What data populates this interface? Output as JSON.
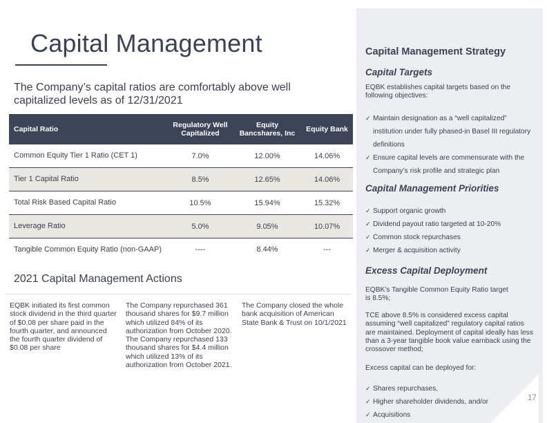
{
  "title": "Capital Management",
  "subtitle": "The Company’s capital ratios are comfortably above well capitalized levels as of 12/31/2021",
  "table": {
    "headers": [
      "Capital Ratio",
      "Regulatory Well Capitalized",
      "Equity Bancshares, Inc",
      "Equity Bank"
    ],
    "rows": [
      [
        "Common Equity Tier 1 Ratio (CET 1)",
        "7.0%",
        "12.00%",
        "14.06%"
      ],
      [
        "Tier 1 Capital Ratio",
        "8.5%",
        "12.65%",
        "14.06%"
      ],
      [
        "Total Risk Based Capital Ratio",
        "10.5%",
        "15.94%",
        "15.32%"
      ],
      [
        "Leverage Ratio",
        "5.0%",
        "9.05%",
        "10.07%"
      ],
      [
        "Tangible Common Equity Ratio (non-GAAP)",
        "----",
        "8.44%",
        "---"
      ]
    ]
  },
  "actions": {
    "title": "2021 Capital Management Actions",
    "items": [
      "EQBK initiated its first common stock dividend in the third quarter of $0.08 per share paid in the fourth quarter, and announced the fourth quarter dividend of $0.08 per share",
      "The Company repurchased 361 thousand shares for $9.7 million which utilized 84% of its authorization from October 2020. The Company repurchased 133 thousand shares for $4.4 million which utilized 13% of its authorization from October 2021.",
      "The Company closed the whole bank acquisition of American State Bank & Trust on 10/1/2021"
    ]
  },
  "strategy": {
    "title": "Capital Management Strategy",
    "targets": {
      "heading": "Capital Targets",
      "intro": "EQBK establishes capital targets based on the following objectives:",
      "bullets": [
        "Maintain designation as a “well capitalized” institution under fully phased-in Basel III regulatory definitions",
        "Ensure capital levels are commensurate with the Company’s risk profile and strategic plan"
      ]
    },
    "priorities": {
      "heading": "Capital Management Priorities",
      "bullets": [
        "Support organic growth",
        "Dividend payout ratio targeted at 10-20%",
        "Common stock repurchases",
        "Merger & acquisition activity"
      ]
    },
    "excess": {
      "heading": "Excess Capital Deployment",
      "p1": "EQBK’s Tangible Common Equity Ratio target is 8.5%;",
      "p2": "TCE above 8.5% is considered excess capital assuming “well capitalized” regulatory capital ratios are maintained. Deployment of capital ideally has less than a 3-year tangible book value earnback using the crossover method;",
      "p3": "Excess capital can be deployed for:",
      "bullets": [
        "Shares repurchases,",
        "Higher shareholder dividends, and/or",
        "Acquisitions"
      ]
    }
  },
  "check_glyph": "✓",
  "page_number": "17",
  "colors": {
    "header_bg": "#3d4457",
    "panel_bg": "#edeef2",
    "row_shade": "#e8e7e2",
    "title": "#3b4254"
  }
}
